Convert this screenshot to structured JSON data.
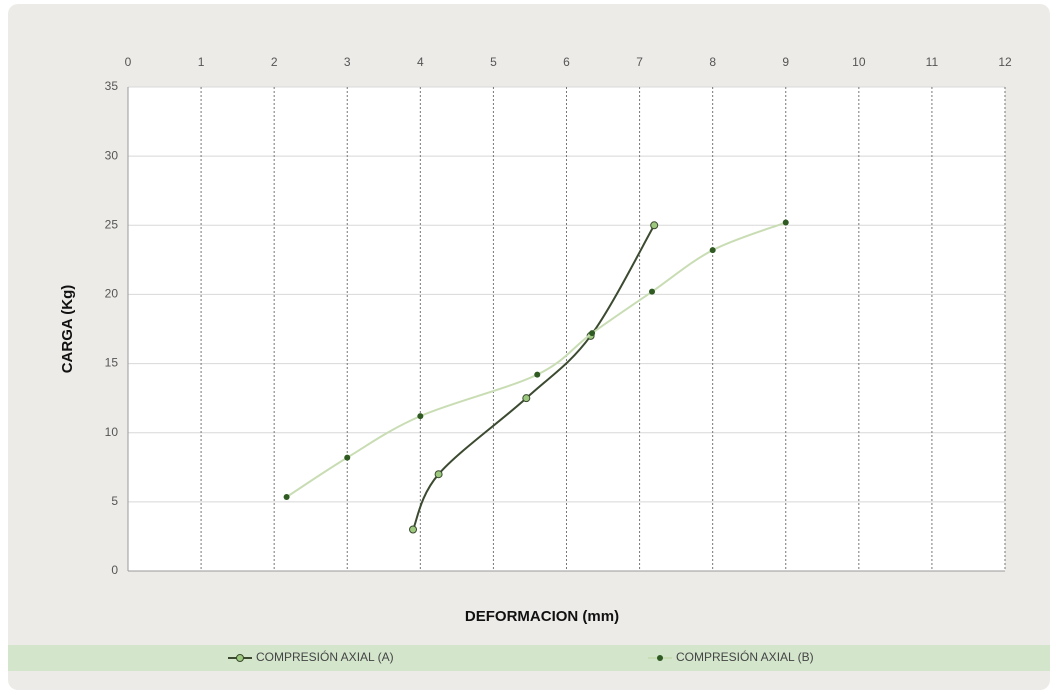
{
  "chart_data": {
    "type": "line",
    "xlabel": "DEFORMACION (mm)",
    "ylabel": "CARGA (Kg)",
    "xlim": [
      0,
      12
    ],
    "xticks": [
      0,
      1,
      2,
      3,
      4,
      5,
      6,
      7,
      8,
      9,
      10,
      11,
      12
    ],
    "ylim": [
      0,
      35
    ],
    "yticks": [
      0,
      5,
      10,
      15,
      20,
      25,
      30,
      35
    ],
    "grid": true,
    "smooth": true,
    "legend": "bottom",
    "series": [
      {
        "name": "COMPRESIÓN AXIAL (A)",
        "color": "#3b4a30",
        "marker_color": "#9cc97e",
        "x": [
          3.9,
          4.25,
          5.45,
          6.33,
          7.2
        ],
        "values": [
          3,
          7,
          12.5,
          17,
          25
        ]
      },
      {
        "name": "COMPRESIÓN AXIAL (B)",
        "color": "#c9ddb4",
        "marker_color": "#2f5a22",
        "x": [
          2.17,
          3.0,
          4.0,
          5.6,
          6.35,
          7.17,
          8.0,
          9.0
        ],
        "values": [
          5.35,
          8.2,
          11.2,
          14.2,
          17.2,
          20.2,
          23.2,
          25.2
        ]
      }
    ]
  }
}
